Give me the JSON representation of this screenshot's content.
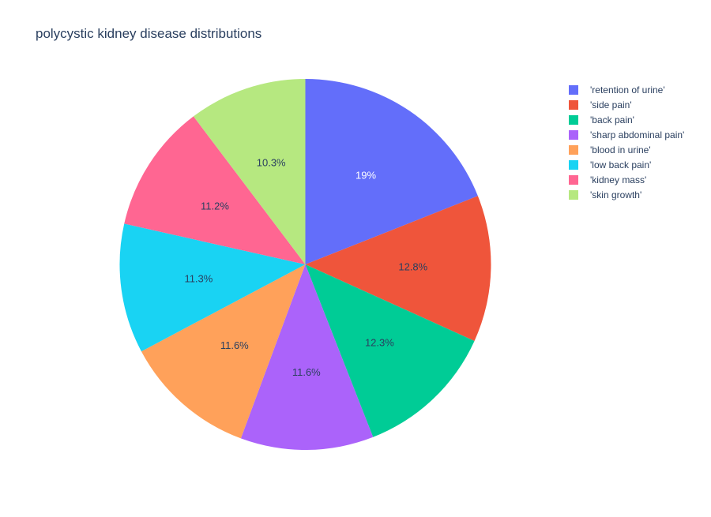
{
  "chart_data": {
    "type": "pie",
    "title": "polycystic kidney disease distributions",
    "legend_position": "right",
    "sort_order": "descending",
    "direction": "clockwise",
    "start": "12 o'clock",
    "series": [
      {
        "name": "",
        "slices": [
          {
            "label": "'retention of urine'",
            "value": 19.0,
            "percent_label": "19%",
            "color": "#636efa",
            "label_color": "#ffffff"
          },
          {
            "label": "'side pain'",
            "value": 12.8,
            "percent_label": "12.8%",
            "color": "#EF553B",
            "label_color": "#2a3f5f"
          },
          {
            "label": "'back pain'",
            "value": 12.3,
            "percent_label": "12.3%",
            "color": "#00cc96",
            "label_color": "#2a3f5f"
          },
          {
            "label": "'sharp abdominal pain'",
            "value": 11.6,
            "percent_label": "11.6%",
            "color": "#ab63fa",
            "label_color": "#2a3f5f"
          },
          {
            "label": "'blood in urine'",
            "value": 11.6,
            "percent_label": "11.6%",
            "color": "#FFA15A",
            "label_color": "#2a3f5f"
          },
          {
            "label": "'low back pain'",
            "value": 11.3,
            "percent_label": "11.3%",
            "color": "#19d3f3",
            "label_color": "#2a3f5f"
          },
          {
            "label": "'kidney mass'",
            "value": 11.2,
            "percent_label": "11.2%",
            "color": "#FF6692",
            "label_color": "#2a3f5f"
          },
          {
            "label": "'skin growth'",
            "value": 10.3,
            "percent_label": "10.3%",
            "color": "#B6E880",
            "label_color": "#2a3f5f"
          }
        ]
      }
    ]
  }
}
